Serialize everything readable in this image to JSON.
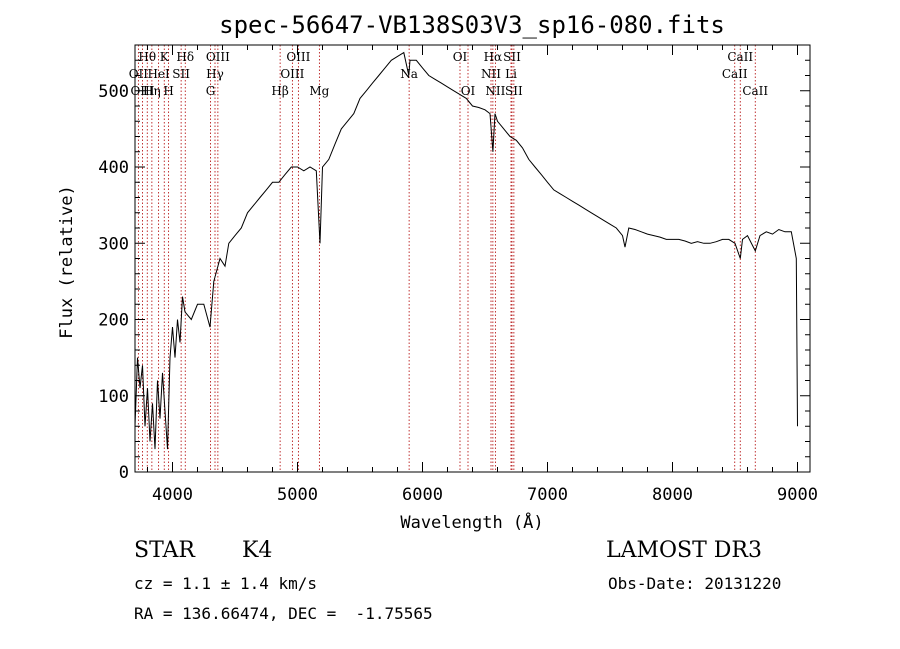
{
  "chart_data": {
    "type": "line",
    "title": "spec-56647-VB138S03V3_sp16-080.fits",
    "xlabel": "Wavelength (Å)",
    "ylabel": "Flux (relative)",
    "xlim": [
      3700,
      9100
    ],
    "ylim": [
      0,
      560
    ],
    "xticks": [
      4000,
      5000,
      6000,
      7000,
      8000,
      9000
    ],
    "yticks": [
      0,
      100,
      200,
      300,
      400,
      500
    ],
    "xtick_labels": [
      "4000",
      "5000",
      "6000",
      "7000",
      "8000",
      "9000"
    ],
    "ytick_labels": [
      "0",
      "100",
      "200",
      "300",
      "400",
      "500"
    ],
    "grid": false,
    "line_color": "#000000",
    "marker_color": "#b00000",
    "spectrum": [
      [
        3700,
        60
      ],
      [
        3720,
        150
      ],
      [
        3740,
        110
      ],
      [
        3760,
        140
      ],
      [
        3780,
        60
      ],
      [
        3800,
        110
      ],
      [
        3820,
        40
      ],
      [
        3840,
        90
      ],
      [
        3860,
        30
      ],
      [
        3880,
        120
      ],
      [
        3900,
        70
      ],
      [
        3920,
        130
      ],
      [
        3940,
        80
      ],
      [
        3960,
        30
      ],
      [
        3980,
        150
      ],
      [
        4000,
        190
      ],
      [
        4020,
        150
      ],
      [
        4040,
        200
      ],
      [
        4060,
        170
      ],
      [
        4080,
        230
      ],
      [
        4100,
        210
      ],
      [
        4150,
        200
      ],
      [
        4200,
        220
      ],
      [
        4250,
        220
      ],
      [
        4300,
        190
      ],
      [
        4330,
        250
      ],
      [
        4380,
        280
      ],
      [
        4420,
        270
      ],
      [
        4450,
        300
      ],
      [
        4500,
        310
      ],
      [
        4550,
        320
      ],
      [
        4600,
        340
      ],
      [
        4650,
        350
      ],
      [
        4700,
        360
      ],
      [
        4750,
        370
      ],
      [
        4800,
        380
      ],
      [
        4850,
        380
      ],
      [
        4900,
        390
      ],
      [
        4950,
        400
      ],
      [
        5000,
        400
      ],
      [
        5050,
        395
      ],
      [
        5100,
        400
      ],
      [
        5150,
        395
      ],
      [
        5180,
        300
      ],
      [
        5200,
        400
      ],
      [
        5250,
        410
      ],
      [
        5300,
        430
      ],
      [
        5350,
        450
      ],
      [
        5400,
        460
      ],
      [
        5450,
        470
      ],
      [
        5500,
        490
      ],
      [
        5550,
        500
      ],
      [
        5600,
        510
      ],
      [
        5650,
        520
      ],
      [
        5700,
        530
      ],
      [
        5750,
        540
      ],
      [
        5800,
        545
      ],
      [
        5850,
        550
      ],
      [
        5890,
        520
      ],
      [
        5900,
        540
      ],
      [
        5950,
        540
      ],
      [
        6000,
        530
      ],
      [
        6050,
        520
      ],
      [
        6100,
        515
      ],
      [
        6150,
        510
      ],
      [
        6200,
        505
      ],
      [
        6250,
        500
      ],
      [
        6300,
        495
      ],
      [
        6350,
        490
      ],
      [
        6400,
        480
      ],
      [
        6450,
        478
      ],
      [
        6500,
        475
      ],
      [
        6540,
        470
      ],
      [
        6563,
        420
      ],
      [
        6580,
        470
      ],
      [
        6600,
        460
      ],
      [
        6650,
        450
      ],
      [
        6700,
        440
      ],
      [
        6750,
        435
      ],
      [
        6800,
        425
      ],
      [
        6850,
        410
      ],
      [
        6900,
        400
      ],
      [
        6950,
        390
      ],
      [
        7000,
        380
      ],
      [
        7050,
        370
      ],
      [
        7100,
        365
      ],
      [
        7150,
        360
      ],
      [
        7200,
        355
      ],
      [
        7250,
        350
      ],
      [
        7300,
        345
      ],
      [
        7350,
        340
      ],
      [
        7400,
        335
      ],
      [
        7450,
        330
      ],
      [
        7500,
        325
      ],
      [
        7550,
        320
      ],
      [
        7600,
        310
      ],
      [
        7620,
        295
      ],
      [
        7650,
        320
      ],
      [
        7700,
        318
      ],
      [
        7750,
        315
      ],
      [
        7800,
        312
      ],
      [
        7850,
        310
      ],
      [
        7900,
        308
      ],
      [
        7950,
        305
      ],
      [
        8000,
        305
      ],
      [
        8050,
        305
      ],
      [
        8100,
        303
      ],
      [
        8150,
        300
      ],
      [
        8200,
        302
      ],
      [
        8250,
        300
      ],
      [
        8300,
        300
      ],
      [
        8350,
        302
      ],
      [
        8400,
        305
      ],
      [
        8450,
        305
      ],
      [
        8500,
        300
      ],
      [
        8542,
        280
      ],
      [
        8560,
        305
      ],
      [
        8600,
        310
      ],
      [
        8662,
        290
      ],
      [
        8700,
        310
      ],
      [
        8750,
        315
      ],
      [
        8800,
        312
      ],
      [
        8850,
        318
      ],
      [
        8900,
        315
      ],
      [
        8950,
        315
      ],
      [
        8990,
        280
      ],
      [
        9000,
        60
      ]
    ],
    "line_markers": [
      {
        "label": "Hθ",
        "x": 3798,
        "row": 0
      },
      {
        "label": "K",
        "x": 3934,
        "row": 0
      },
      {
        "label": "Hδ",
        "x": 4102,
        "row": 0
      },
      {
        "label": "OIII",
        "x": 4363,
        "row": 0
      },
      {
        "label": "OIII",
        "x": 5007,
        "row": 0
      },
      {
        "label": "OI",
        "x": 6300,
        "row": 0
      },
      {
        "label": "Hα",
        "x": 6563,
        "row": 0
      },
      {
        "label": "SII",
        "x": 6716,
        "row": 0
      },
      {
        "label": "CaII",
        "x": 8542,
        "row": 0
      },
      {
        "label": "OII",
        "x": 3727,
        "row": 1
      },
      {
        "label": "HeI",
        "x": 3889,
        "row": 1
      },
      {
        "label": "SII",
        "x": 4069,
        "row": 1
      },
      {
        "label": "Hγ",
        "x": 4340,
        "row": 1
      },
      {
        "label": "OIII",
        "x": 4959,
        "row": 1
      },
      {
        "label": "Na",
        "x": 5893,
        "row": 1
      },
      {
        "label": "NII",
        "x": 6548,
        "row": 1
      },
      {
        "label": "Li",
        "x": 6708,
        "row": 1
      },
      {
        "label": "CaII",
        "x": 8498,
        "row": 1
      },
      {
        "label": "OIII",
        "x": 3760,
        "row": 2
      },
      {
        "label": "Hη",
        "x": 3835,
        "row": 2
      },
      {
        "label": "H",
        "x": 3969,
        "row": 2
      },
      {
        "label": "G",
        "x": 4304,
        "row": 2
      },
      {
        "label": "Hβ",
        "x": 4861,
        "row": 2
      },
      {
        "label": "Mg",
        "x": 5175,
        "row": 2
      },
      {
        "label": "OI",
        "x": 6364,
        "row": 2
      },
      {
        "label": "NII",
        "x": 6583,
        "row": 2
      },
      {
        "label": "SII",
        "x": 6731,
        "row": 2
      },
      {
        "label": "CaII",
        "x": 8662,
        "row": 2
      }
    ]
  },
  "info": {
    "object_class": "STAR",
    "subclass": "K4",
    "survey": "LAMOST DR3",
    "cz": "cz = 1.1 ± 1.4 km/s",
    "obs_date": "Obs-Date: 20131220",
    "coords": "RA = 136.66474, DEC =  -1.75565"
  }
}
